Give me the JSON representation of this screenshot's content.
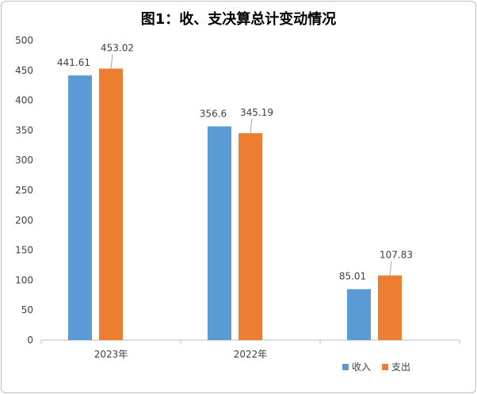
{
  "chart_data": {
    "type": "bar",
    "title": "图1：收、支决算总计变动情况",
    "categories": [
      "2023年",
      "2022年",
      ""
    ],
    "series": [
      {
        "name": "收入",
        "values": [
          441.61,
          356.6,
          85.01
        ],
        "color": "#5B9BD5",
        "labels": [
          "441.61",
          "356.6",
          "85.01"
        ]
      },
      {
        "name": "支出",
        "values": [
          453.02,
          345.19,
          107.83
        ],
        "color": "#ED7D31",
        "labels": [
          "453.02",
          "345.19",
          "107.83"
        ]
      }
    ],
    "ylim": [
      0,
      500
    ],
    "yticks": [
      "0",
      "50",
      "100",
      "150",
      "200",
      "250",
      "300",
      "350",
      "400",
      "450",
      "500"
    ],
    "xlabel": "",
    "ylabel": "",
    "grid": false,
    "legend": "bottom-right"
  }
}
